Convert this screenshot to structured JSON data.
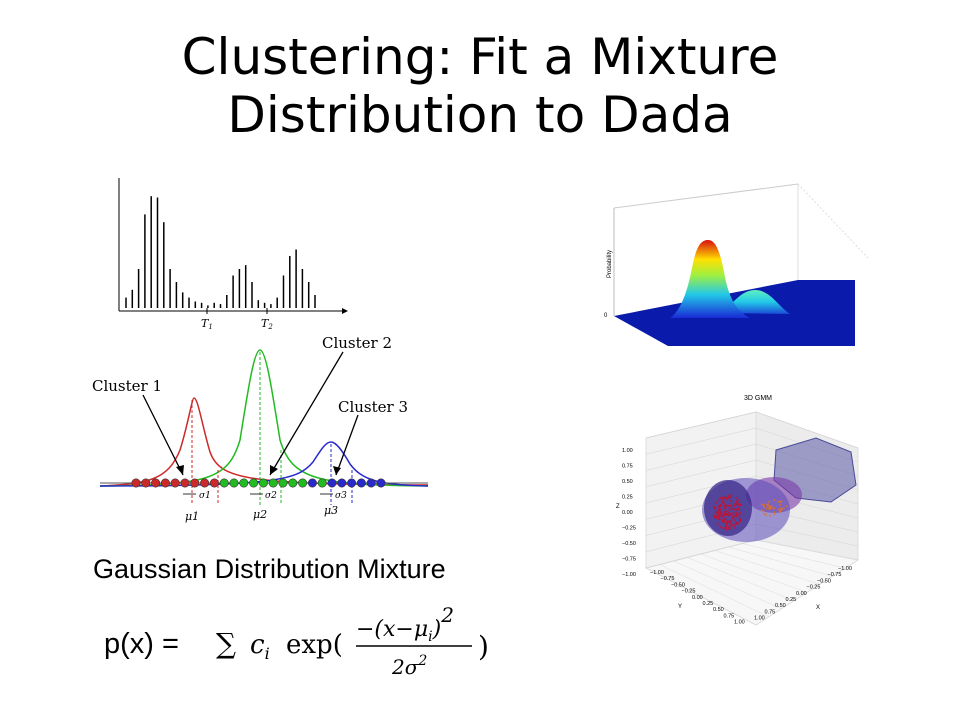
{
  "slide": {
    "title_line1": "Clustering: Fit a Mixture",
    "title_line2": "Distribution to Dada",
    "caption": "Gaussian Distribution Mixture"
  },
  "histogram": {
    "threshold_labels": [
      "T",
      "T"
    ],
    "threshold_subscripts": [
      "1",
      "2"
    ],
    "bar_heights": [
      0.08,
      0.14,
      0.3,
      0.72,
      0.86,
      0.85,
      0.66,
      0.3,
      0.2,
      0.12,
      0.08,
      0.05,
      0.04,
      0.02,
      0.04,
      0.03,
      0.1,
      0.25,
      0.3,
      0.33,
      0.2,
      0.06,
      0.04,
      0.03,
      0.08,
      0.25,
      0.4,
      0.45,
      0.3,
      0.2,
      0.1
    ]
  },
  "gaussians": {
    "cluster_labels": [
      "Cluster 1",
      "Cluster 2",
      "Cluster 3"
    ],
    "sigma_labels": [
      "σ1",
      "σ2",
      "σ3"
    ],
    "mu_labels": [
      "μ1",
      "μ2",
      "μ3"
    ],
    "colors": {
      "cluster1": "#cc2a2a",
      "cluster2": "#22bb22",
      "cluster3": "#2a2acc"
    }
  },
  "surface_plot": {
    "ylabel": "Probability",
    "zero_label": "0"
  },
  "gmm3d": {
    "title": "3D GMM",
    "z_label": "Z",
    "x_label": "X",
    "y_label": "Y",
    "z_ticks": [
      "1.00",
      "0.75",
      "0.50",
      "0.25",
      "0.00",
      "−0.25",
      "−0.50",
      "−0.75",
      "−1.00"
    ],
    "x_ticks": [
      "−1.00",
      "−0.75",
      "−0.50",
      "−0.25",
      "0.00",
      "0.25",
      "0.50",
      "0.75",
      "1.00"
    ],
    "y_ticks": [
      "−1.00",
      "−0.75",
      "−0.50",
      "−0.25",
      "0.00",
      "0.25",
      "0.50",
      "0.75",
      "1.00"
    ]
  },
  "formula": {
    "lhs": "p(x) =",
    "sum": "∑",
    "coef": "c",
    "coef_sub": "i",
    "exp": "exp(",
    "numerator": "−(x−μ",
    "numerator_sub": "i",
    "numerator_close": ")",
    "numerator_pow": "2",
    "denominator": "2σ",
    "denominator_pow": "2",
    "close": ")"
  }
}
